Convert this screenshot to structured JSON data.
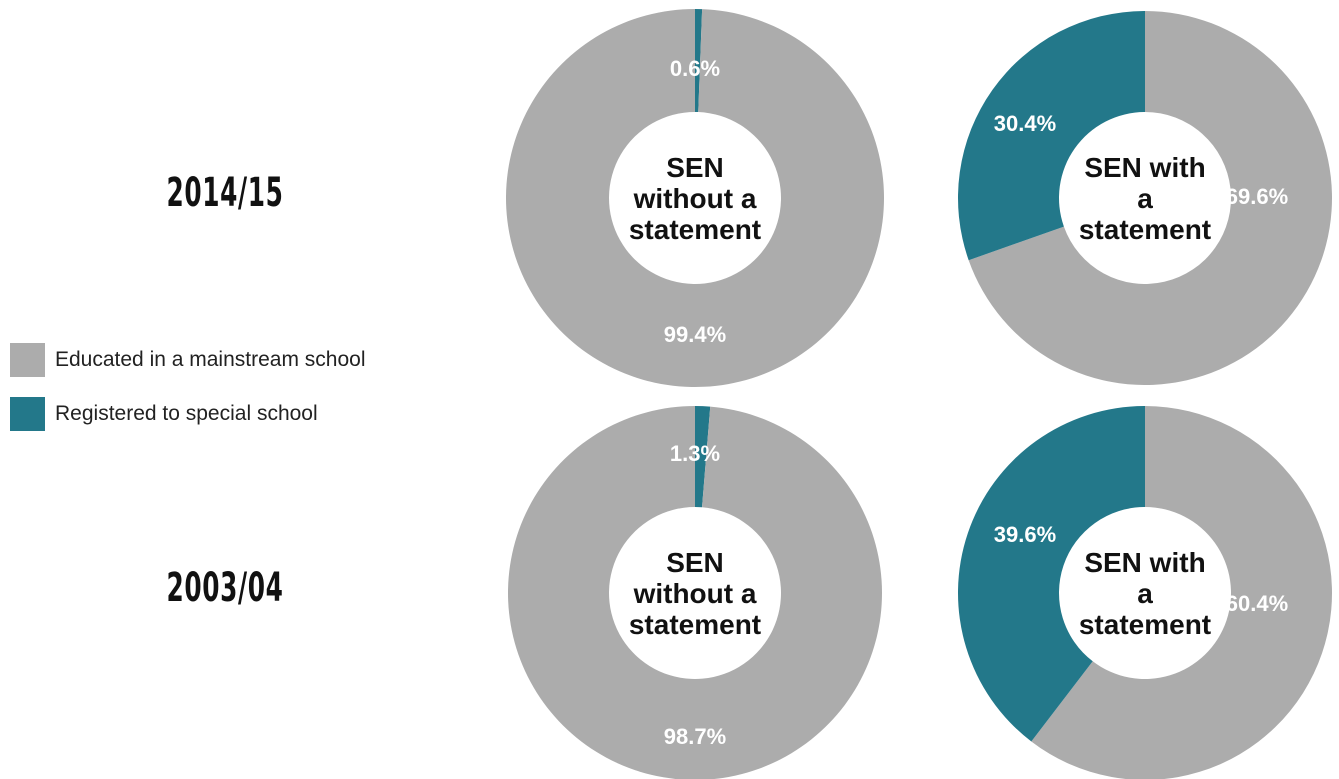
{
  "legend": [
    {
      "label": "Educated in a mainstream school",
      "color": "#acacac"
    },
    {
      "label": "Registered to special school",
      "color": "#23788a"
    }
  ],
  "chart_data": [
    {
      "type": "pie",
      "row_label": "2014/15",
      "center_label": [
        "SEN",
        "without a",
        "statement"
      ],
      "slices": [
        {
          "series": "Registered to special school",
          "value": 0.6,
          "label": "0.6%",
          "color": "#23788a"
        },
        {
          "series": "Educated in a mainstream school",
          "value": 99.4,
          "label": "99.4%",
          "color": "#acacac"
        }
      ]
    },
    {
      "type": "pie",
      "row_label": "2014/15",
      "center_label": [
        "SEN with",
        "a",
        "statement"
      ],
      "slices": [
        {
          "series": "Educated in a mainstream school",
          "value": 69.6,
          "label": "69.6%",
          "color": "#acacac"
        },
        {
          "series": "Registered to special school",
          "value": 30.4,
          "label": "30.4%",
          "color": "#23788a"
        }
      ]
    },
    {
      "type": "pie",
      "row_label": "2003/04",
      "center_label": [
        "SEN",
        "without a",
        "statement"
      ],
      "slices": [
        {
          "series": "Registered to special school",
          "value": 1.3,
          "label": "1.3%",
          "color": "#23788a"
        },
        {
          "series": "Educated in a mainstream school",
          "value": 98.7,
          "label": "98.7%",
          "color": "#acacac"
        }
      ]
    },
    {
      "type": "pie",
      "row_label": "2003/04",
      "center_label": [
        "SEN with",
        "a",
        "statement"
      ],
      "slices": [
        {
          "series": "Educated in a mainstream school",
          "value": 60.4,
          "label": "60.4%",
          "color": "#acacac"
        },
        {
          "series": "Registered to special school",
          "value": 39.6,
          "label": "39.6%",
          "color": "#23788a"
        }
      ]
    }
  ]
}
